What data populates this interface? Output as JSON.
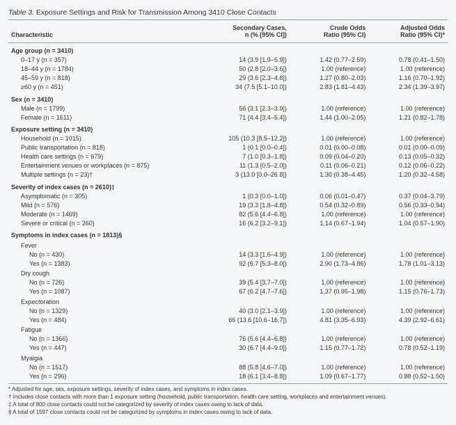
{
  "title_prefix": "Table 3.",
  "title_text": "Exposure Settings and Risk for Transmission Among 3410 Close Contacts",
  "headers": {
    "c0": "Characteristic",
    "c1_l1": "Secondary Cases,",
    "c1_l2": "n (% [95% CI])",
    "c2_l1": "Crude Odds",
    "c2_l2": "Ratio (95% CI)",
    "c3_l1": "Adjusted Odds",
    "c3_l2": "Ratio (95% CI)*"
  },
  "sections": [
    {
      "label": "Age group (n = 3410)",
      "rows": [
        {
          "c0": "0–17 y (n = 357)",
          "c1": "14 (3.9 [1.9–5.9])",
          "c2": "1.42 (0.77–2.59)",
          "c3": "0.78 (0.41–1.50)"
        },
        {
          "c0": "18–44 y (n = 1784)",
          "c1": "50 (2.8 [2.0–3.6])",
          "c2": "1.00 (reference)",
          "c3": "1.00 (reference)"
        },
        {
          "c0": "45–59 y (n = 818)",
          "c1": "29 (3.6 [2.3–4.8])",
          "c2": "1.27 (0.80–2.03)",
          "c3": "1.16 (0.70–1.92)"
        },
        {
          "c0": "≥60 y (n = 451)",
          "c1": "34 (7.5 [5.1–10.0])",
          "c2": "2.83 (1.81–4.43)",
          "c3": "2.34 (1.39–3.97)"
        }
      ]
    },
    {
      "label": "Sex (n = 3410)",
      "rows": [
        {
          "c0": "Male (n = 1799)",
          "c1": "56 (3.1 [2.3–3.9])",
          "c2": "1.00 (reference)",
          "c3": "1.00 (reference)"
        },
        {
          "c0": "Female (n = 1611)",
          "c1": "71 (4.4 [3.4–5.4])",
          "c2": "1.44 (1.00–2.05)",
          "c3": "1.21 (0.82–1.78)"
        }
      ]
    },
    {
      "label": "Exposure setting (n = 3410)",
      "rows": [
        {
          "c0": "Household (n = 1015)",
          "c1": "105 (10.3 [8.5–12.2])",
          "c2": "1.00 (reference)",
          "c3": "1.00 (reference)"
        },
        {
          "c0": "Public transportation (n = 818)",
          "c1": "1 (0.1 [0.0–0.4])",
          "c2": "0.01 (0.00–0.08)",
          "c3": "0.01 (0.00–0.09)"
        },
        {
          "c0": "Health care settings (n = 679)",
          "c1": "7 (1.0 [0.3–1.8])",
          "c2": "0.09 (0.04–0.20)",
          "c3": "0.13 (0.05–0.32)"
        },
        {
          "c0": "Entertainment venues or workplaces (n = 875)",
          "c1": "11 (1.3 [0.5–2.0])",
          "c2": "0.11 (0.06–0.21)",
          "c3": "0.12 (0.06–0.22)"
        },
        {
          "c0": "Multiple settings (n = 23)†",
          "c1": "3 (13.0 [0.0–26.8])",
          "c2": "1.30 (0.38–4.45)",
          "c3": "1.20 (0.32–4.58)"
        }
      ]
    },
    {
      "label": "Severity of index cases (n = 2610)‡",
      "rows": [
        {
          "c0": "Asymptomatic (n = 305)",
          "c1": "1 (0.3 [0.0–1.0])",
          "c2": "0.06 (0.01–0.47)",
          "c3": "0.37 (0.04–3.79)"
        },
        {
          "c0": "Mild (n = 576)",
          "c1": "19 (3.3 [1.8–4.8])",
          "c2": "0.54 (0.32–0.89)",
          "c3": "0.56 (0.33–0.94)"
        },
        {
          "c0": "Moderate (n = 1469)",
          "c1": "82 (5.6 [4.4–6.8])",
          "c2": "1.00 (reference)",
          "c3": "1.00 (reference)"
        },
        {
          "c0": "Severe or critical (n = 260)",
          "c1": "16 (6.2 [3.2–9.1])",
          "c2": "1.14 (0.67–1.94)",
          "c3": "1.04 (0.57–1.90)"
        }
      ]
    }
  ],
  "symptoms_label": "Symptoms in index cases (n = 1813)§",
  "symptoms": [
    {
      "label": "Fever",
      "rows": [
        {
          "c0": "No (n = 430)",
          "c1": "14 (3.3 [1.6–4.9])",
          "c2": "1.00 (reference)",
          "c3": "1.00 (reference)"
        },
        {
          "c0": "Yes (n = 1383)",
          "c1": "92 (6.7 [5.3–8.0])",
          "c2": "2.90 (1.73–4.86)",
          "c3": "1.78 (1.01–3.13)"
        }
      ]
    },
    {
      "label": "Dry cough",
      "rows": [
        {
          "c0": "No (n = 726)",
          "c1": "39 (5.4 [3.7–7.0])",
          "c2": "1.00 (reference)",
          "c3": "1.00 (reference)"
        },
        {
          "c0": "Yes (n = 1087)",
          "c1": "67 (6.2 [4.7–7.6])",
          "c2": "1.37 (0.95–1.98)",
          "c3": "1.15 (0.76–1.73)"
        }
      ]
    },
    {
      "label": "Expectoration",
      "rows": [
        {
          "c0": "No (n = 1329)",
          "c1": "40 (3.0 [2.1–3.9])",
          "c2": "1.00 (reference)",
          "c3": "1.00 (reference)"
        },
        {
          "c0": "Yes (n = 484)",
          "c1": "66 (13.6 [10.6–16.7])",
          "c2": "4.81 (3.35–6.93)",
          "c3": "4.39 (2.92–6.61)"
        }
      ]
    },
    {
      "label": "Fatigue",
      "rows": [
        {
          "c0": "No (n = 1366)",
          "c1": "76 (5.6 [4.4–6.8])",
          "c2": "1.00 (reference)",
          "c3": "1.00 (reference)"
        },
        {
          "c0": "Yes (n = 447)",
          "c1": "30 (6.7 [4.4–9.0])",
          "c2": "1.15 (0.77–1.72)",
          "c3": "0.78 (0.52–1.19)"
        }
      ]
    },
    {
      "label": "Myalgia",
      "rows": [
        {
          "c0": "No (n = 1517)",
          "c1": "88 (5.8 [4.6–7.0])",
          "c2": "1.00 (reference)",
          "c3": "1.00 (reference)"
        },
        {
          "c0": "Yes (n = 296)",
          "c1": "18 (6.1 [3.4–8.8])",
          "c2": "1.09 (0.67–1.77)",
          "c3": "0.88 (0.52–1.50)"
        }
      ]
    }
  ],
  "footnotes": [
    "* Adjusted for age, sex, exposure settings, severity of index cases, and symptoms in index cases.",
    "† Includes close contacts with more than 1 exposure setting (household, public transportation, health care setting, workplaces and entertainment venues).",
    "‡ A total of 800 close contacts could not be categorized by severity of index cases owing to lack of data.",
    "§ A total of 1597 close contacts could not be categorized by symptoms in index cases owing to lack of data."
  ],
  "col_widths": [
    "41%",
    "23%",
    "18%",
    "18%"
  ]
}
